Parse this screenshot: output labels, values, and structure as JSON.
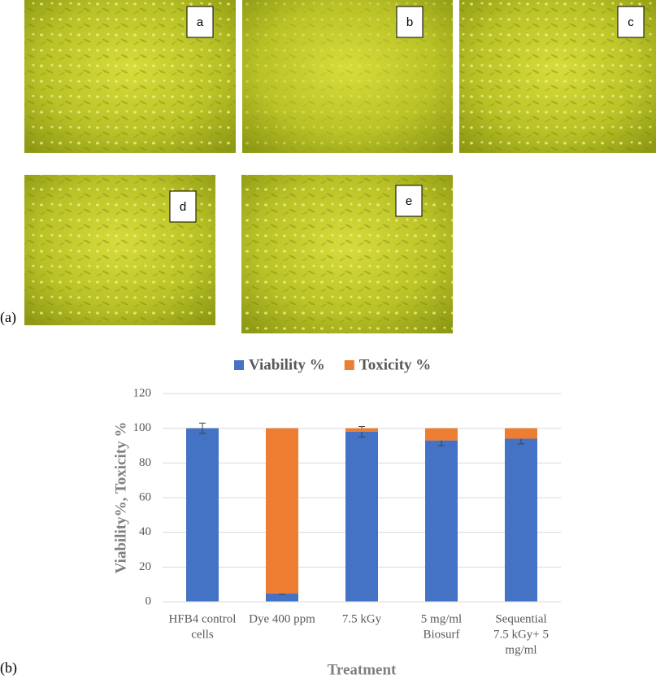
{
  "figure_labels": {
    "part_a": "(a)",
    "part_b": "(b)"
  },
  "panels": [
    "a",
    "b",
    "c",
    "d",
    "e"
  ],
  "chart_data": {
    "type": "stacked-bar",
    "categories": [
      [
        "HFB4 control",
        "cells"
      ],
      [
        "Dye 400 ppm"
      ],
      [
        "7.5 kGy"
      ],
      [
        "5 mg/ml",
        "Biosurf"
      ],
      [
        "Sequential",
        "7.5 kGy+ 5",
        "mg/ml"
      ]
    ],
    "series": [
      {
        "name": "Viability %",
        "color": "#4472c4",
        "values": [
          100,
          4.7,
          98,
          93,
          94
        ],
        "errors": [
          3,
          0.4,
          3,
          3,
          3
        ]
      },
      {
        "name": "Toxicity %",
        "color": "#ed7d31",
        "values": [
          0,
          95.3,
          2,
          7,
          6
        ]
      }
    ],
    "ylim": [
      0,
      120
    ],
    "yticks": [
      0,
      20,
      40,
      60,
      80,
      100,
      120
    ],
    "y_label": "Viability%, Toxicity %",
    "x_label": "Treatment",
    "grid": true,
    "legend": "top"
  }
}
